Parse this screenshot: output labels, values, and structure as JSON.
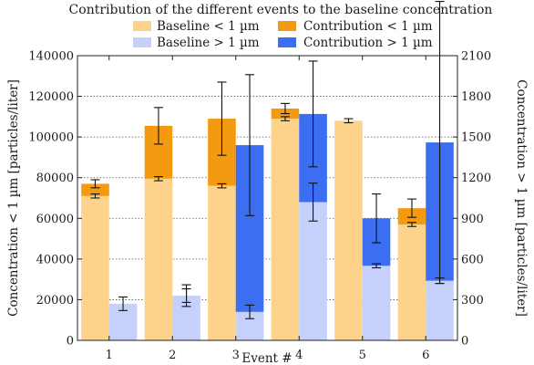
{
  "chart_data": {
    "type": "bar",
    "title": "Contribution of the different events to the baseline concentration",
    "xlabel": "Event #",
    "ylabel_left": "Concentration < 1 µm [particles/liter]",
    "ylabel_right": "Concentration > 1 µm [particles/liter]",
    "categories": [
      "1",
      "2",
      "3",
      "4",
      "5",
      "6"
    ],
    "y_left": {
      "min": 0,
      "max": 140000,
      "ticks": [
        0,
        20000,
        40000,
        60000,
        80000,
        100000,
        120000,
        140000
      ],
      "tick_labels": [
        "0",
        "20000",
        "40000",
        "60000",
        "80000",
        "100000",
        "120000",
        "140000"
      ]
    },
    "y_right": {
      "min": 0,
      "max": 2100,
      "ticks": [
        0,
        300,
        600,
        900,
        1200,
        1500,
        1800,
        2100
      ],
      "tick_labels": [
        "0",
        "300",
        "600",
        "900",
        "1200",
        "1500",
        "1800",
        "2100"
      ]
    },
    "grid": true,
    "legend_position": "top",
    "series": [
      {
        "name": "Baseline < 1 µm",
        "axis": "left",
        "color": "#fdd28a",
        "values": [
          71000,
          79500,
          76000,
          109000,
          108000,
          57000
        ],
        "errors": [
          1000,
          1000,
          1000,
          1000,
          1000,
          1000
        ]
      },
      {
        "name": "Contribution < 1 µm",
        "axis": "left",
        "stacked_on": "Baseline < 1 µm",
        "color": "#f49a10",
        "values": [
          6000,
          26000,
          33000,
          5000,
          0,
          8000
        ],
        "errors": [
          2000,
          9000,
          18000,
          2500,
          0,
          4500
        ]
      },
      {
        "name": "Baseline > 1 µm",
        "axis": "right",
        "color": "#c5d0fb",
        "values": [
          270,
          330,
          210,
          1020,
          550,
          440
        ],
        "errors": [
          50,
          50,
          50,
          140,
          15,
          20
        ]
      },
      {
        "name": "Contribution > 1 µm",
        "axis": "right",
        "stacked_on": "Baseline > 1 µm",
        "color": "#3c6ef2",
        "values": [
          0,
          0,
          1230,
          650,
          350,
          1020
        ],
        "errors": [
          0,
          80,
          520,
          390,
          180,
          1040
        ]
      }
    ]
  }
}
